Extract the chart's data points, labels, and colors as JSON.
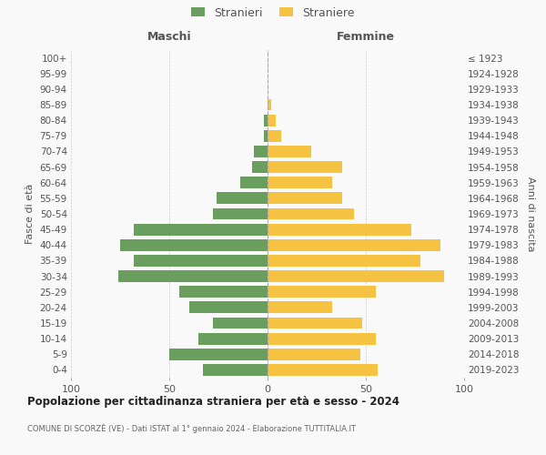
{
  "age_groups": [
    "0-4",
    "5-9",
    "10-14",
    "15-19",
    "20-24",
    "25-29",
    "30-34",
    "35-39",
    "40-44",
    "45-49",
    "50-54",
    "55-59",
    "60-64",
    "65-69",
    "70-74",
    "75-79",
    "80-84",
    "85-89",
    "90-94",
    "95-99",
    "100+"
  ],
  "birth_years": [
    "2019-2023",
    "2014-2018",
    "2009-2013",
    "2004-2008",
    "1999-2003",
    "1994-1998",
    "1989-1993",
    "1984-1988",
    "1979-1983",
    "1974-1978",
    "1969-1973",
    "1964-1968",
    "1959-1963",
    "1954-1958",
    "1949-1953",
    "1944-1948",
    "1939-1943",
    "1934-1938",
    "1929-1933",
    "1924-1928",
    "≤ 1923"
  ],
  "maschi": [
    33,
    50,
    35,
    28,
    40,
    45,
    76,
    68,
    75,
    68,
    28,
    26,
    14,
    8,
    7,
    2,
    2,
    0,
    0,
    0,
    0
  ],
  "femmine": [
    56,
    47,
    55,
    48,
    33,
    55,
    90,
    78,
    88,
    73,
    44,
    38,
    33,
    38,
    22,
    7,
    4,
    2,
    0,
    0,
    0
  ],
  "male_color": "#6a9e5e",
  "female_color": "#f5c242",
  "background_color": "#f9f9f9",
  "grid_color": "#cccccc",
  "title": "Popolazione per cittadinanza straniera per età e sesso - 2024",
  "subtitle": "COMUNE DI SCORZÈ (VE) - Dati ISTAT al 1° gennaio 2024 - Elaborazione TUTTITALIA.IT",
  "ylabel_left": "Fasce di età",
  "ylabel_right": "Anni di nascita",
  "header_left": "Maschi",
  "header_right": "Femmine",
  "legend_stranieri": "Stranieri",
  "legend_straniere": "Straniere",
  "xlim": 100
}
